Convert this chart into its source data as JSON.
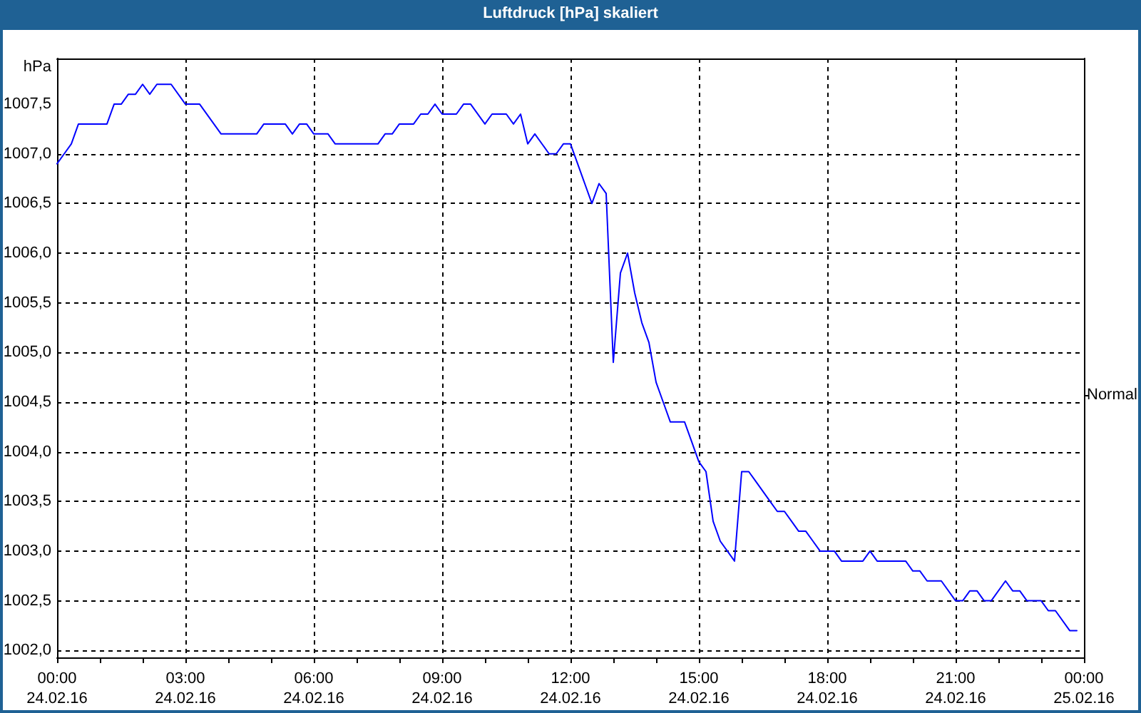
{
  "chart_data": {
    "type": "line",
    "title": "Luftdruck [hPa] skaliert",
    "ylabel": "hPa",
    "x": [
      "--02-24T00:00",
      "--02-24T00:10",
      "--02-24T00:20",
      "--02-24T00:30",
      "--02-24T01:10",
      "--02-24T01:20",
      "--02-24T01:30",
      "--02-24T01:40",
      "--02-24T01:50",
      "--02-24T02:00",
      "--02-24T02:10",
      "--02-24T02:20",
      "--02-24T02:40",
      "--02-24T03:00",
      "--02-24T03:20",
      "--02-24T03:50",
      "--02-24T04:40",
      "--02-24T04:50",
      "--02-24T05:20",
      "--02-24T05:30",
      "--02-24T05:40",
      "--02-24T05:50",
      "--02-24T06:00",
      "--02-24T06:20",
      "--02-24T06:30",
      "--02-24T07:30",
      "--02-24T07:40",
      "--02-24T07:50",
      "--02-24T08:00",
      "--02-24T08:20",
      "--02-24T08:30",
      "--02-24T08:40",
      "--02-24T08:50",
      "--02-24T09:00",
      "--02-24T09:20",
      "--02-24T09:30",
      "--02-24T09:40",
      "--02-24T10:00",
      "--02-24T10:10",
      "--02-24T10:30",
      "--02-24T10:40",
      "--02-24T10:50",
      "--02-24T11:00",
      "--02-24T11:10",
      "--02-24T11:30",
      "--02-24T11:40",
      "--02-24T11:50",
      "--02-24T12:00",
      "--02-24T12:10",
      "--02-24T12:20",
      "--02-24T12:30",
      "--02-24T12:40",
      "--02-24T12:50",
      "--02-24T13:00",
      "--02-24T13:10",
      "--02-24T13:20",
      "--02-24T13:30",
      "--02-24T13:40",
      "--02-24T13:50",
      "--02-24T14:00",
      "--02-24T14:10",
      "--02-24T14:20",
      "--02-24T14:40",
      "--02-24T14:50",
      "--02-24T15:00",
      "--02-24T15:10",
      "--02-24T15:20",
      "--02-24T15:30",
      "--02-24T15:40",
      "--02-24T15:50",
      "--02-24T16:00",
      "--02-24T16:10",
      "--02-24T16:20",
      "--02-24T16:30",
      "--02-24T16:40",
      "--02-24T16:50",
      "--02-24T17:00",
      "--02-24T17:10",
      "--02-24T17:20",
      "--02-24T17:30",
      "--02-24T17:40",
      "--02-24T17:50",
      "--02-24T18:10",
      "--02-24T18:20",
      "--02-24T18:50",
      "--02-24T19:00",
      "--02-24T19:10",
      "--02-24T19:50",
      "--02-24T20:00",
      "--02-24T20:10",
      "--02-24T20:20",
      "--02-24T20:40",
      "--02-24T21:00",
      "--02-24T21:10",
      "--02-24T21:20",
      "--02-24T21:30",
      "--02-24T21:40",
      "--02-24T21:50",
      "--02-24T22:10",
      "--02-24T22:20",
      "--02-24T22:30",
      "--02-24T22:40",
      "--02-24T23:00",
      "--02-24T23:10",
      "--02-24T23:20",
      "--02-24T23:40",
      "--02-24T23:50"
    ],
    "values": [
      1006.9,
      1007.0,
      1007.1,
      1007.3,
      1007.3,
      1007.5,
      1007.5,
      1007.6,
      1007.6,
      1007.7,
      1007.6,
      1007.7,
      1007.7,
      1007.5,
      1007.5,
      1007.2,
      1007.2,
      1007.3,
      1007.3,
      1007.2,
      1007.3,
      1007.3,
      1007.2,
      1007.2,
      1007.1,
      1007.1,
      1007.2,
      1007.2,
      1007.3,
      1007.3,
      1007.4,
      1007.4,
      1007.5,
      1007.4,
      1007.4,
      1007.5,
      1007.5,
      1007.3,
      1007.4,
      1007.4,
      1007.3,
      1007.4,
      1007.1,
      1007.2,
      1007.0,
      1007.0,
      1007.1,
      1007.1,
      1006.9,
      1006.7,
      1006.5,
      1006.7,
      1006.6,
      1004.9,
      1005.8,
      1006.0,
      1005.6,
      1005.3,
      1005.1,
      1004.7,
      1004.5,
      1004.3,
      1004.3,
      1004.1,
      1003.9,
      1003.8,
      1003.3,
      1003.1,
      1003.0,
      1002.9,
      1003.8,
      1003.8,
      1003.7,
      1003.6,
      1003.5,
      1003.4,
      1003.4,
      1003.3,
      1003.2,
      1003.2,
      1003.1,
      1003.0,
      1003.0,
      1002.9,
      1002.9,
      1003.0,
      1002.9,
      1002.9,
      1002.8,
      1002.8,
      1002.7,
      1002.7,
      1002.5,
      1002.5,
      1002.6,
      1002.6,
      1002.5,
      1002.5,
      1002.7,
      1002.6,
      1002.6,
      1002.5,
      1002.5,
      1002.4,
      1002.4,
      1002.2,
      1002.2
    ],
    "color": "#0000ff",
    "marker": "none",
    "xlim": [
      "--02-24T00:00",
      "--02-25T00:00"
    ],
    "xticks": [
      {
        "value": "--02-24T00:00",
        "label": "00:00\n24.02.16"
      },
      {
        "value": "--02-24T01:00",
        "label": null
      },
      {
        "value": "--02-24T02:00",
        "label": null
      },
      {
        "value": "--02-24T03:00",
        "label": "03:00\n24.02.16"
      },
      {
        "value": "--02-24T04:00",
        "label": null
      },
      {
        "value": "--02-24T05:00",
        "label": null
      },
      {
        "value": "--02-24T06:00",
        "label": "06:00\n24.02.16"
      },
      {
        "value": "--02-24T07:00",
        "label": null
      },
      {
        "value": "--02-24T08:00",
        "label": null
      },
      {
        "value": "--02-24T09:00",
        "label": "09:00\n24.02.16"
      },
      {
        "value": "--02-24T10:00",
        "label": null
      },
      {
        "value": "--02-24T11:00",
        "label": null
      },
      {
        "value": "--02-24T12:00",
        "label": "12:00\n24.02.16"
      },
      {
        "value": "--02-24T13:00",
        "label": null
      },
      {
        "value": "--02-24T14:00",
        "label": null
      },
      {
        "value": "--02-24T15:00",
        "label": "15:00\n24.02.16"
      },
      {
        "value": "--02-24T16:00",
        "label": null
      },
      {
        "value": "--02-24T17:00",
        "label": null
      },
      {
        "value": "--02-24T18:00",
        "label": "18:00\n24.02.16"
      },
      {
        "value": "--02-24T19:00",
        "label": null
      },
      {
        "value": "--02-24T20:00",
        "label": null
      },
      {
        "value": "--02-24T21:00",
        "label": "21:00\n24.02.16"
      },
      {
        "value": "--02-24T22:00",
        "label": null
      },
      {
        "value": "--02-24T23:00",
        "label": null
      },
      {
        "value": "--02-25T00:00",
        "label": "00:00\n25.02.16"
      }
    ],
    "ylim": [
      1001.93,
      1007.96
    ],
    "yticks": [
      {
        "value": 1002.0,
        "label": "1002,0"
      },
      {
        "value": 1002.5,
        "label": "1002,5"
      },
      {
        "value": 1003.0,
        "label": "1003,0"
      },
      {
        "value": 1003.5,
        "label": "1003,5"
      },
      {
        "value": 1004.0,
        "label": "1004,0"
      },
      {
        "value": 1004.5,
        "label": "1004,5"
      },
      {
        "value": 1005.0,
        "label": "1005,0"
      },
      {
        "value": 1005.5,
        "label": "1005,5"
      },
      {
        "value": 1006.0,
        "label": "1006,0"
      },
      {
        "value": 1006.5,
        "label": "1006,5"
      },
      {
        "value": 1007.0,
        "label": "1007,0"
      },
      {
        "value": 1007.5,
        "label": "1007,5"
      }
    ],
    "ref_lines": [
      {
        "axis": "y",
        "value": 1004.57,
        "label": "Normal"
      }
    ],
    "grid": true
  }
}
